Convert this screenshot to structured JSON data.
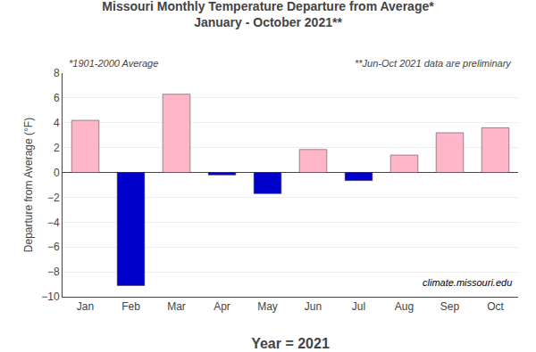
{
  "chart_data": {
    "type": "bar",
    "title": "Missouri Monthly Temperature Departure from Average*\nJanuary - October 2021**",
    "xlabel": "Year = 2021",
    "ylabel": "Departure from Average (°F)",
    "categories": [
      "Jan",
      "Feb",
      "Mar",
      "Apr",
      "May",
      "Jun",
      "Jul",
      "Aug",
      "Sep",
      "Oct"
    ],
    "values": [
      4.2,
      -9.1,
      6.3,
      -0.2,
      -1.7,
      1.85,
      -0.65,
      1.4,
      3.2,
      3.6
    ],
    "colors": [
      "#FFB6C8",
      "#0000CC",
      "#FFB6C8",
      "#0000CC",
      "#0000CC",
      "#FFB6C8",
      "#0000CC",
      "#FFB6C8",
      "#FFB6C8",
      "#FFB6C8"
    ],
    "ylim": [
      -10,
      8
    ],
    "yticks": [
      -10,
      -8,
      -6,
      -4,
      -2,
      0,
      2,
      4,
      6,
      8
    ],
    "grid": true,
    "annotations": [
      "*1901-2000 Average",
      "**Jun-Oct 2021 data are preliminary",
      "climate.missouri.edu"
    ]
  }
}
